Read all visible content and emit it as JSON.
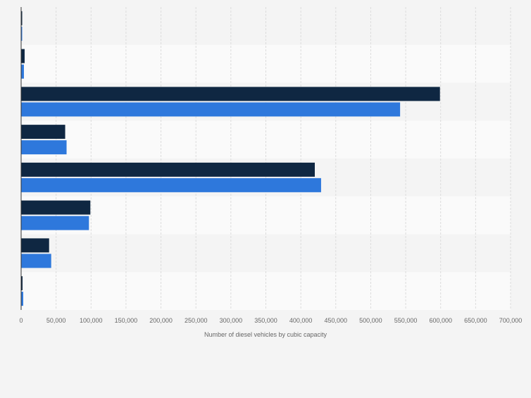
{
  "chart_data": {
    "type": "bar",
    "orientation": "horizontal",
    "xlabel": "Number of diesel vehicles by cubic capacity",
    "xlim": [
      0,
      700000
    ],
    "x_ticks": [
      0,
      50000,
      100000,
      150000,
      200000,
      250000,
      300000,
      350000,
      400000,
      450000,
      500000,
      550000,
      600000,
      650000,
      700000
    ],
    "x_tick_labels": [
      "0",
      "50,000",
      "100,000",
      "150,000",
      "200,000",
      "250,000",
      "300,000",
      "350,000",
      "400,000",
      "450,000",
      "500,000",
      "550,000",
      "600,000",
      "650,000",
      "700,000"
    ],
    "grid": true,
    "legend": "none",
    "category_count": 8,
    "series": [
      {
        "color": "#0f2742",
        "values": [
          1500,
          5000,
          599000,
          63000,
          420000,
          99000,
          40000,
          2000
        ]
      },
      {
        "color": "#2e78dc",
        "values": [
          1500,
          4000,
          542000,
          65000,
          429000,
          97000,
          43000,
          3000
        ]
      }
    ]
  }
}
